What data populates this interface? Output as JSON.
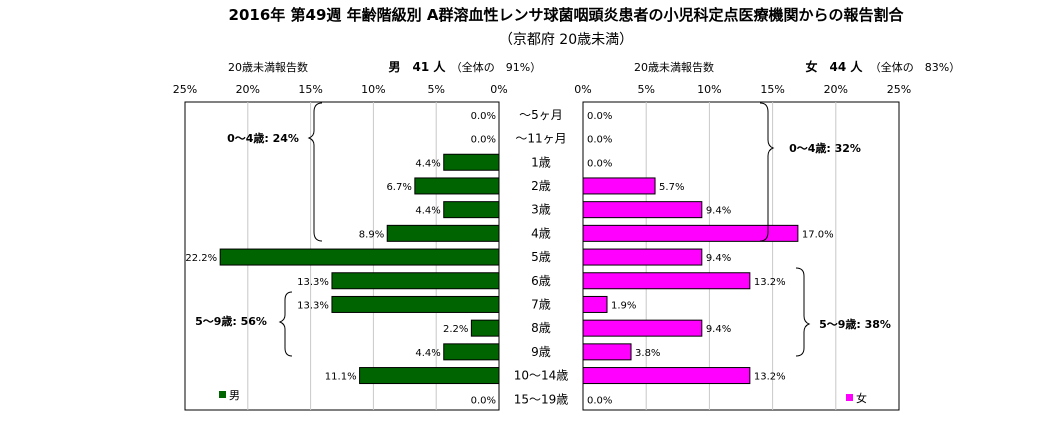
{
  "title": "2016年 第49週 年齢階級別 A群溶血性レンサ球菌咽頭炎患者の小児科定点医療機関からの報告割合",
  "subtitle": "（京都府 20歳未満）",
  "left_panel": {
    "header_label": "20歳未満報告数",
    "header_total": "男　41 人",
    "header_pct": "（全体の　91%）",
    "legend": "男",
    "bracket_0_4": "0～4歳: 24%",
    "bracket_5_9": "5～9歳: 56%"
  },
  "right_panel": {
    "header_label": "20歳未満報告数",
    "header_total": "女　44 人",
    "header_pct": "（全体の　83%）",
    "legend": "女",
    "bracket_0_4": "0～4歳: 32%",
    "bracket_5_9": "5～9歳: 38%"
  },
  "colors": {
    "male": "#006400",
    "female": "#ff00ff",
    "border": "#000000",
    "grid": "#c8c8c8"
  },
  "chart_data": {
    "type": "bar",
    "orientation": "horizontal-butterfly",
    "title": "2016年 第49週 年齢階級別 A群溶血性レンサ球菌咽頭炎患者の小児科定点医療機関からの報告割合",
    "categories": [
      "～5ヶ月",
      "～11ヶ月",
      "1歳",
      "2歳",
      "3歳",
      "4歳",
      "5歳",
      "6歳",
      "7歳",
      "8歳",
      "9歳",
      "10～14歳",
      "15～19歳"
    ],
    "xlim": [
      0,
      25
    ],
    "xticks": [
      0,
      5,
      10,
      15,
      20,
      25
    ],
    "xtick_labels": [
      "0%",
      "5%",
      "10%",
      "15%",
      "20%",
      "25%"
    ],
    "grid": true,
    "series": [
      {
        "name": "男",
        "values": [
          0.0,
          0.0,
          4.4,
          6.7,
          4.4,
          8.9,
          22.2,
          13.3,
          13.3,
          2.2,
          4.4,
          11.1,
          0.0
        ],
        "labels": [
          "0.0%",
          "0.0%",
          "4.4%",
          "6.7%",
          "4.4%",
          "8.9%",
          "22.2%",
          "13.3%",
          "13.3%",
          "2.2%",
          "4.4%",
          "11.1%",
          "0.0%"
        ]
      },
      {
        "name": "女",
        "values": [
          0.0,
          0.0,
          0.0,
          5.7,
          9.4,
          17.0,
          9.4,
          13.2,
          1.9,
          9.4,
          3.8,
          13.2,
          0.0
        ],
        "labels": [
          "0.0%",
          "0.0%",
          "0.0%",
          "5.7%",
          "9.4%",
          "17.0%",
          "9.4%",
          "13.2%",
          "1.9%",
          "9.4%",
          "3.8%",
          "13.2%",
          "0.0%"
        ]
      }
    ]
  }
}
